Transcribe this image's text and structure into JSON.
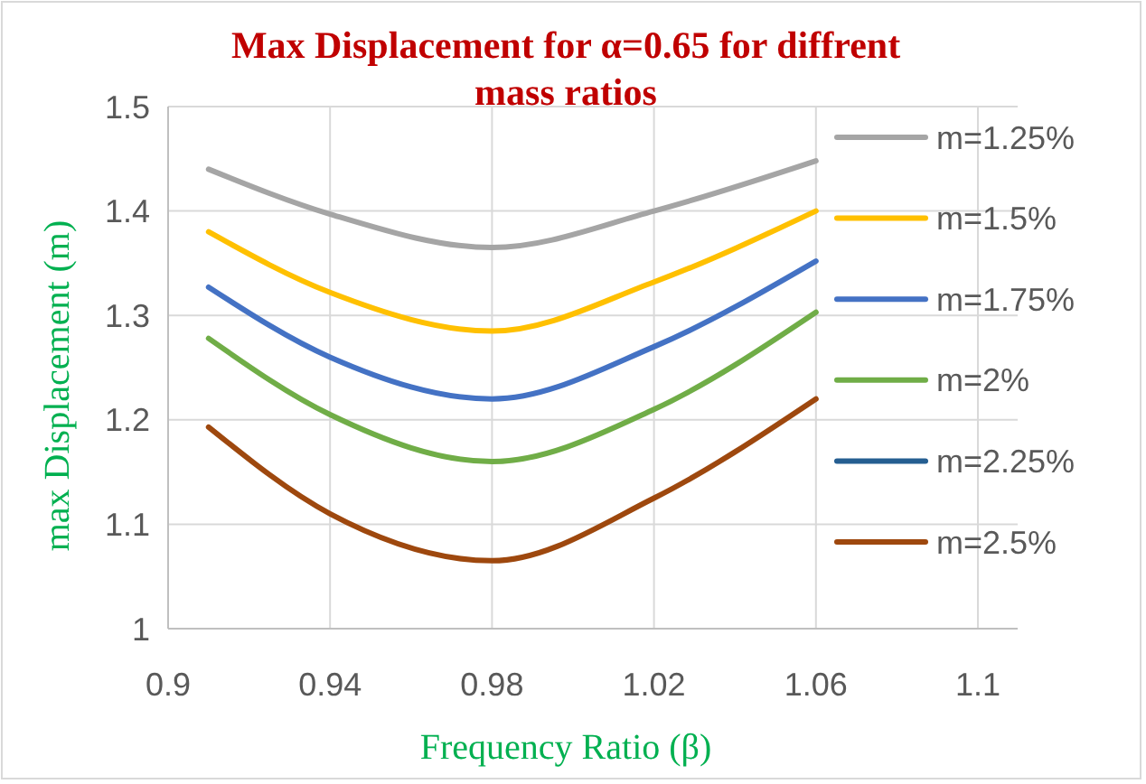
{
  "chart_data": {
    "type": "line",
    "title": "Max Displacement for α=0.65 for diffrent mass ratios",
    "xlabel": "Frequency Ratio (β)",
    "ylabel": "max Displacement (m)",
    "x": [
      0.91,
      0.94,
      0.98,
      1.02,
      1.06
    ],
    "series": [
      {
        "name": "m=1.25%",
        "color": "#a5a5a5",
        "values": [
          1.44,
          1.397,
          1.365,
          1.4,
          1.448
        ]
      },
      {
        "name": "m=1.5%",
        "color": "#ffc000",
        "values": [
          1.38,
          1.322,
          1.285,
          1.332,
          1.4
        ]
      },
      {
        "name": "m=1.75%",
        "color": "#4472c4",
        "values": [
          1.327,
          1.26,
          1.22,
          1.27,
          1.352
        ]
      },
      {
        "name": "m=2%",
        "color": "#70ad47",
        "values": [
          1.278,
          1.205,
          1.16,
          1.21,
          1.303
        ]
      },
      {
        "name": "m=2.25%",
        "color": "#255e91",
        "values": [
          null,
          null,
          null,
          null,
          null
        ]
      },
      {
        "name": "m=2.5%",
        "color": "#9e480e",
        "values": [
          1.193,
          1.11,
          1.065,
          1.125,
          1.22
        ]
      }
    ],
    "xlim": [
      0.9,
      1.1
    ],
    "xticks": [
      0.9,
      0.94,
      0.98,
      1.02,
      1.06,
      1.1
    ],
    "ylim": [
      1,
      1.5
    ],
    "yticks": [
      1,
      1.1,
      1.2,
      1.3,
      1.4,
      1.5
    ],
    "grid": true,
    "legend": "right",
    "line_style": "solid"
  }
}
